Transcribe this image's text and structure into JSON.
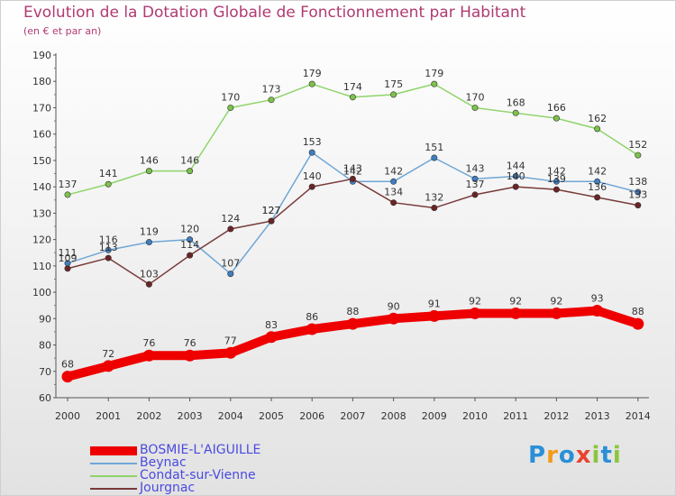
{
  "title": "Evolution de la Dotation Globale de Fonctionnement par Habitant",
  "subtitle": "(en € et par an)",
  "logo": {
    "text": "Proxiti",
    "letters": [
      "P",
      "r",
      "o",
      "x",
      "i",
      "t",
      "i"
    ],
    "letter_colors": [
      "#2a8fd6",
      "#f39a1a",
      "#2a8fd6",
      "#e8442f",
      "#8bc53f",
      "#2a8fd6",
      "#8bc53f"
    ]
  },
  "chart_data": {
    "type": "line",
    "title": "Evolution de la Dotation Globale de Fonctionnement par Habitant",
    "subtitle": "(en € et par an)",
    "xlabel": "",
    "ylabel": "",
    "ylim": [
      60,
      190
    ],
    "yticks": [
      60,
      70,
      80,
      90,
      100,
      110,
      120,
      130,
      140,
      150,
      160,
      170,
      180,
      190
    ],
    "x": [
      "2000",
      "2001",
      "2002",
      "2003",
      "2004",
      "2005",
      "2006",
      "2007",
      "2008",
      "2009",
      "2010",
      "2011",
      "2012",
      "2013",
      "2014"
    ],
    "series": [
      {
        "name": "BOSMIE-L'AIGUILLE",
        "color": "#ee0000",
        "highlight": true,
        "values": [
          68,
          72,
          76,
          76,
          77,
          83,
          86,
          88,
          90,
          91,
          92,
          92,
          92,
          93,
          88
        ]
      },
      {
        "name": "Beynac",
        "color": "#6fa6d6",
        "marker_color": "#3f7fc0",
        "values": [
          111,
          116,
          119,
          120,
          107,
          127,
          153,
          142,
          142,
          151,
          143,
          144,
          142,
          142,
          138
        ]
      },
      {
        "name": "Condat-sur-Vienne",
        "color": "#8fd46a",
        "marker_color": "#7cc24a",
        "values": [
          137,
          141,
          146,
          146,
          170,
          173,
          179,
          174,
          175,
          179,
          170,
          168,
          166,
          162,
          152
        ]
      },
      {
        "name": "Jourgnac",
        "color": "#7a3a3a",
        "marker_color": "#6b2424",
        "values": [
          109,
          113,
          103,
          114,
          124,
          127,
          140,
          143,
          134,
          132,
          137,
          140,
          139,
          136,
          133
        ]
      }
    ],
    "grid": false,
    "legend": "bottom-left"
  }
}
